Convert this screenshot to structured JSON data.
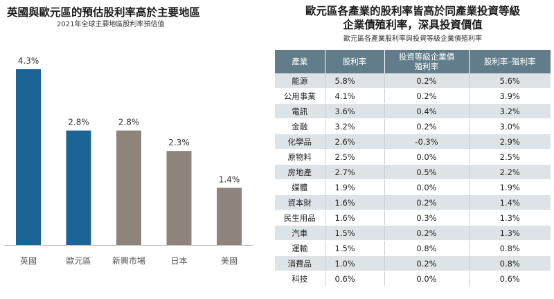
{
  "left": {
    "title": "英國與歐元區的預估股利率高於主要地區",
    "subtitle": "2021年全球主要地區股利率預估值"
  },
  "right": {
    "title_line1": "歐元區各產業的股利率皆高於同產業投資等級",
    "title_line2": "企業債殖利率，深具投資價值",
    "subtitle": "歐元區各產業股利率與投資等級企業債殖利率"
  },
  "colors": {
    "highlight_bar": "#1c6496",
    "other_bar": "#8d857b",
    "table_header": "#627d8a",
    "table_stripe": "#dde3e6"
  },
  "chart_data": {
    "type": "bar",
    "categories": [
      "英國",
      "歐元區",
      "新興市場",
      "日本",
      "美國"
    ],
    "values": [
      4.3,
      2.8,
      2.8,
      2.3,
      1.4
    ],
    "value_labels": [
      "4.3%",
      "2.8%",
      "2.8%",
      "2.3%",
      "1.4%"
    ],
    "highlighted": [
      true,
      true,
      false,
      false,
      false
    ],
    "title": "英國與歐元區的預估股利率高於主要地區",
    "subtitle": "2021年全球主要地區股利率預估值",
    "ylim": [
      0,
      4.5
    ],
    "grid": false
  },
  "table": {
    "headers": [
      "產業",
      "股利率",
      "投資等級企業債\n殖利率",
      "股利率–殖利率"
    ],
    "rows": [
      [
        "能源",
        "5.8%",
        "0.2%",
        "5.6%"
      ],
      [
        "公用事業",
        "4.1%",
        "0.2%",
        "3.9%"
      ],
      [
        "電訊",
        "3.6%",
        "0.4%",
        "3.2%"
      ],
      [
        "金融",
        "3.2%",
        "0.2%",
        "3.0%"
      ],
      [
        "化學品",
        "2.6%",
        "-0.3%",
        "2.9%"
      ],
      [
        "原物料",
        "2.5%",
        "0.0%",
        "2.5%"
      ],
      [
        "房地產",
        "2.7%",
        "0.5%",
        "2.2%"
      ],
      [
        "媒體",
        "1.9%",
        "0.0%",
        "1.9%"
      ],
      [
        "資本財",
        "1.6%",
        "0.2%",
        "1.4%"
      ],
      [
        "民生用品",
        "1.6%",
        "0.3%",
        "1.3%"
      ],
      [
        "汽車",
        "1.5%",
        "0.2%",
        "1.3%"
      ],
      [
        "運輸",
        "1.5%",
        "0.8%",
        "0.8%"
      ],
      [
        "消費品",
        "1.0%",
        "0.2%",
        "0.8%"
      ],
      [
        "科技",
        "0.6%",
        "0.0%",
        "0.6%"
      ]
    ]
  }
}
